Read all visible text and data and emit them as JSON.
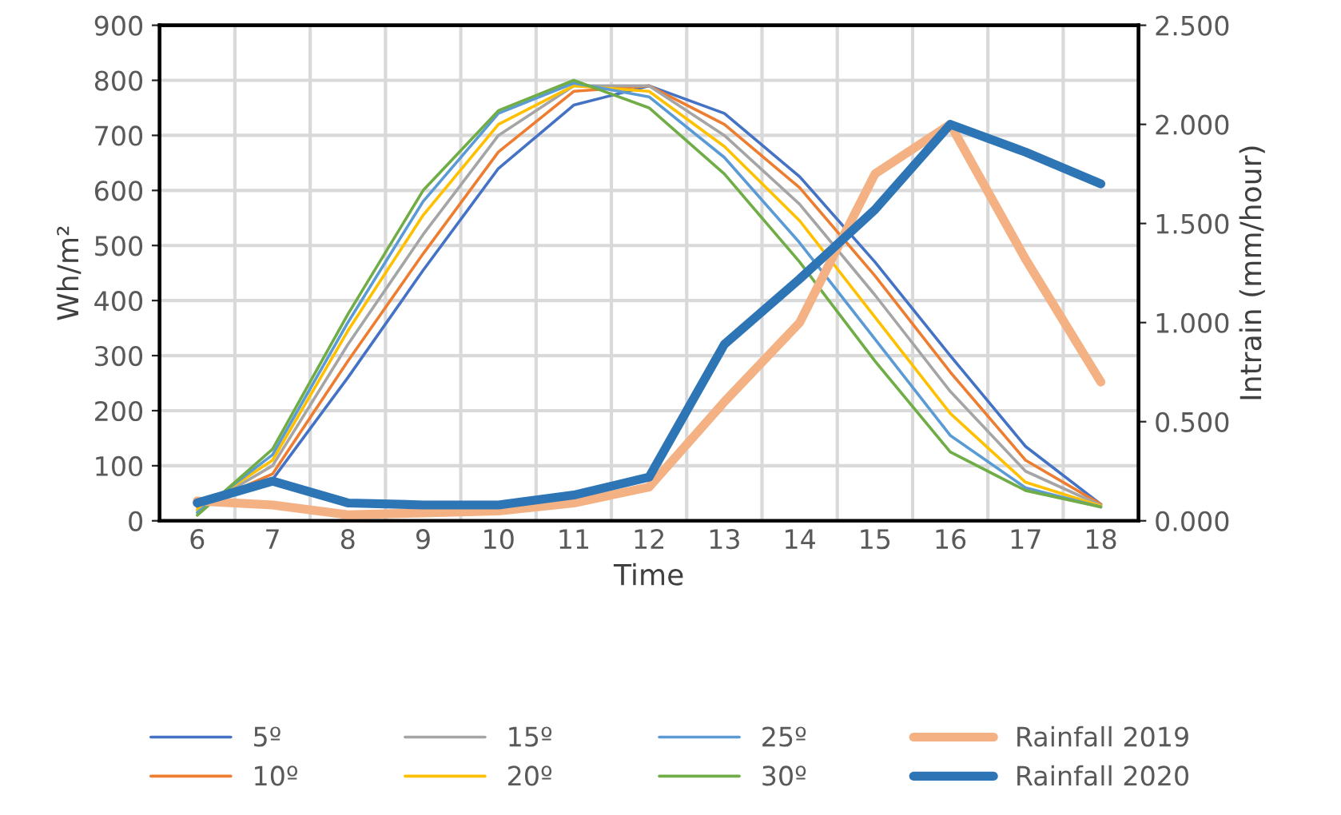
{
  "chart_data": {
    "type": "line",
    "xlabel": "Time",
    "ylabel": "Wh/m²",
    "y2label": "Intrain (mm/hour)",
    "categories": [
      "6",
      "7",
      "8",
      "9",
      "10",
      "11",
      "12",
      "13",
      "14",
      "15",
      "16",
      "17",
      "18"
    ],
    "series": [
      {
        "name": "5º",
        "color": "#4472c4",
        "values": [
          30,
          75,
          260,
          455,
          640,
          755,
          790,
          740,
          625,
          470,
          300,
          135,
          30
        ]
      },
      {
        "name": "10º",
        "color": "#ed7d31",
        "values": [
          25,
          85,
          290,
          485,
          670,
          780,
          790,
          720,
          605,
          445,
          270,
          110,
          30
        ]
      },
      {
        "name": "15º",
        "color": "#a5a5a5",
        "values": [
          20,
          100,
          320,
          520,
          700,
          790,
          790,
          700,
          575,
          410,
          235,
          90,
          28
        ]
      },
      {
        "name": "20º",
        "color": "#ffc000",
        "values": [
          20,
          110,
          345,
          555,
          720,
          790,
          780,
          680,
          545,
          370,
          195,
          70,
          27
        ]
      },
      {
        "name": "25º",
        "color": "#5b9bd5",
        "values": [
          15,
          120,
          360,
          580,
          740,
          795,
          770,
          660,
          505,
          330,
          155,
          60,
          25
        ]
      },
      {
        "name": "30º",
        "color": "#70ad47",
        "values": [
          10,
          130,
          375,
          600,
          745,
          800,
          750,
          630,
          470,
          290,
          125,
          55,
          25
        ]
      },
      {
        "name": "Rainfall 2019",
        "color": "#f4b183",
        "axis": "y2",
        "values": [
          0.1,
          0.08,
          0.03,
          0.04,
          0.05,
          0.09,
          0.17,
          0.6,
          1.0,
          1.75,
          2.0,
          1.32,
          0.7
        ]
      },
      {
        "name": "Rainfall 2020",
        "color": "#2e75b6",
        "axis": "y2",
        "values": [
          0.09,
          0.2,
          0.09,
          0.08,
          0.08,
          0.13,
          0.22,
          0.89,
          1.22,
          1.57,
          2.0,
          1.86,
          1.7
        ]
      }
    ],
    "ylim": [
      0,
      900
    ],
    "yticks": [
      0,
      100,
      200,
      300,
      400,
      500,
      600,
      700,
      800,
      900
    ],
    "y2lim": [
      0,
      2.5
    ],
    "y2ticks": [
      {
        "value": 0,
        "label": "0.000"
      },
      {
        "value": 0.5,
        "label": "0.500"
      },
      {
        "value": 1,
        "label": "1.000"
      },
      {
        "value": 1.5,
        "label": "1.500"
      },
      {
        "value": 2,
        "label": "2.000"
      },
      {
        "value": 2.5,
        "label": "2.500"
      }
    ],
    "grid": true,
    "legend": "bottom",
    "marker": "none",
    "line_style": "solid"
  }
}
